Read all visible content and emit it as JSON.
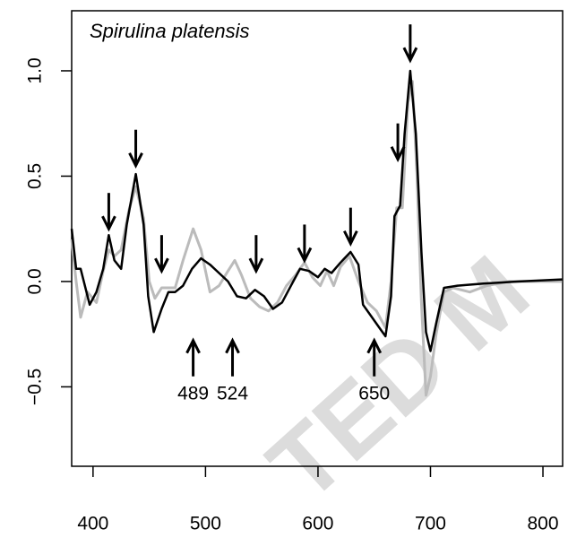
{
  "chart_data": {
    "type": "line",
    "title": "Spirulina platensis",
    "watermark": "TED M",
    "xlim": [
      381,
      817.5
    ],
    "ylim": [
      -0.877,
      1.285
    ],
    "xticks": [
      400,
      500,
      600,
      700,
      800
    ],
    "yticks": [
      {
        "value": -0.5,
        "label": "−0.5"
      },
      {
        "value": 0,
        "label": "0.0"
      },
      0.5,
      {
        "value": 1,
        "label": "1.0"
      }
    ],
    "series": [
      {
        "color": "#bbbbbb",
        "x": [
          381,
          385,
          389,
          395,
          403,
          409,
          414,
          419,
          425,
          432,
          438,
          445,
          450,
          455,
          461,
          467,
          473,
          480,
          489,
          496,
          504,
          512,
          520,
          526,
          532,
          540,
          548,
          556,
          564,
          572,
          580,
          588,
          595,
          602,
          608,
          614,
          620,
          628,
          636,
          644,
          652,
          660,
          665,
          670,
          675,
          680,
          684,
          688,
          692,
          696,
          700,
          705,
          712,
          720,
          735,
          750,
          770,
          790,
          817
        ],
        "values": [
          0.2,
          0.0,
          -0.17,
          -0.05,
          -0.1,
          0.05,
          0.15,
          0.12,
          0.15,
          0.34,
          0.45,
          0.3,
          0.0,
          -0.08,
          -0.03,
          -0.03,
          -0.03,
          0.1,
          0.25,
          0.15,
          -0.05,
          -0.02,
          0.05,
          0.1,
          0.03,
          -0.08,
          -0.12,
          -0.14,
          -0.1,
          -0.02,
          0.03,
          0.09,
          0.02,
          -0.02,
          0.05,
          -0.02,
          0.07,
          0.12,
          0.0,
          -0.1,
          -0.14,
          -0.22,
          0.0,
          0.35,
          0.35,
          0.85,
          0.95,
          0.5,
          -0.1,
          -0.54,
          -0.45,
          -0.25,
          -0.05,
          -0.03,
          -0.05,
          -0.02,
          0.0,
          0.0,
          0.0
        ]
      },
      {
        "color": "#000000",
        "x": [
          381,
          385,
          389,
          397,
          403,
          409,
          414,
          419,
          425,
          430,
          438,
          445,
          449,
          454,
          461,
          467,
          473,
          480,
          488,
          496,
          504,
          512,
          520,
          528,
          536,
          544,
          552,
          560,
          568,
          576,
          584,
          592,
          600,
          606,
          612,
          620,
          629,
          636,
          640,
          648,
          656,
          660,
          665,
          668,
          673,
          677,
          682,
          687,
          692,
          696,
          700,
          705,
          712,
          724,
          747,
          779,
          817
        ],
        "values": [
          0.25,
          0.06,
          0.06,
          -0.11,
          -0.05,
          0.06,
          0.22,
          0.1,
          0.06,
          0.27,
          0.51,
          0.27,
          -0.07,
          -0.24,
          -0.13,
          -0.05,
          -0.05,
          -0.02,
          0.06,
          0.11,
          0.08,
          0.04,
          0.0,
          -0.07,
          -0.08,
          -0.04,
          -0.07,
          -0.13,
          -0.1,
          -0.02,
          0.06,
          0.05,
          0.02,
          0.06,
          0.04,
          0.09,
          0.14,
          0.08,
          -0.11,
          -0.17,
          -0.23,
          -0.26,
          -0.07,
          0.31,
          0.36,
          0.7,
          1.0,
          0.7,
          0.14,
          -0.24,
          -0.33,
          -0.2,
          -0.03,
          -0.02,
          -0.01,
          0.0,
          0.01
        ]
      }
    ],
    "down_arrows": [
      {
        "x": 414,
        "y": 0.25
      },
      {
        "x": 438,
        "y": 0.55
      },
      {
        "x": 461,
        "y": 0.05
      },
      {
        "x": 545,
        "y": 0.05
      },
      {
        "x": 588,
        "y": 0.1
      },
      {
        "x": 629,
        "y": 0.18
      },
      {
        "x": 671,
        "y": 0.58
      },
      {
        "x": 682,
        "y": 1.05
      }
    ],
    "up_arrows": [
      {
        "x": 489,
        "y": -0.28
      },
      {
        "x": 524,
        "y": -0.28
      },
      {
        "x": 650,
        "y": -0.28
      }
    ]
  }
}
